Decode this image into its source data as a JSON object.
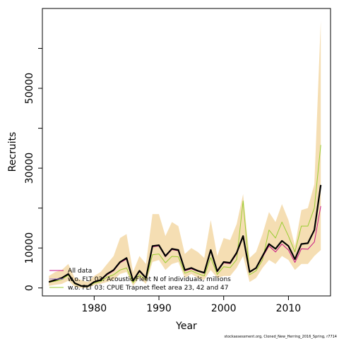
{
  "chart_data": {
    "type": "line",
    "xlabel": "Year",
    "ylabel": "Recruits",
    "xlim": [
      1972,
      2016.5
    ],
    "ylim": [
      -2000,
      70000
    ],
    "x_ticks": [
      1980,
      1990,
      2000,
      2010
    ],
    "x_tick_labels": [
      "1980",
      "1990",
      "2000",
      "2010"
    ],
    "y_ticks": [
      0,
      10000,
      20000,
      30000,
      40000,
      50000,
      60000
    ],
    "y_tick_labels": [
      "0",
      "10000",
      "",
      "30000",
      "",
      "50000",
      ""
    ],
    "x": [
      1973,
      1974,
      1975,
      1976,
      1977,
      1978,
      1979,
      1980,
      1981,
      1982,
      1983,
      1984,
      1985,
      1986,
      1987,
      1988,
      1989,
      1990,
      1991,
      1992,
      1993,
      1994,
      1995,
      1996,
      1997,
      1998,
      1999,
      2000,
      2001,
      2002,
      2003,
      2004,
      2005,
      2006,
      2007,
      2008,
      2009,
      2010,
      2011,
      2012,
      2013,
      2014,
      2015
    ],
    "band": {
      "name": "",
      "color": "#f5deb3",
      "lower": [
        500,
        800,
        1000,
        1800,
        300,
        0,
        0,
        700,
        1000,
        1500,
        2000,
        3500,
        4000,
        500,
        2500,
        1000,
        6500,
        7000,
        4500,
        6000,
        6500,
        2500,
        3500,
        2500,
        2000,
        4500,
        2500,
        3000,
        3000,
        5000,
        8000,
        1500,
        2500,
        5000,
        7000,
        6000,
        8000,
        7000,
        4500,
        6000,
        6000,
        8000,
        9500
      ],
      "upper": [
        3000,
        4000,
        4500,
        6000,
        2500,
        2000,
        1500,
        3000,
        4000,
        6000,
        8000,
        12500,
        13500,
        4000,
        8000,
        6000,
        18500,
        18500,
        13000,
        16500,
        15500,
        8500,
        10000,
        9000,
        7500,
        17000,
        8000,
        12500,
        12000,
        16000,
        23500,
        7500,
        9000,
        13500,
        19000,
        16500,
        21000,
        17000,
        10500,
        19500,
        20000,
        26000,
        67000
      ]
    },
    "series": [
      {
        "name": "All data",
        "color": "#000000",
        "values": [
          1500,
          2000,
          2500,
          3500,
          1200,
          500,
          400,
          1500,
          2000,
          3500,
          4500,
          6500,
          7500,
          1800,
          4300,
          2500,
          10500,
          10700,
          8000,
          9800,
          9500,
          4500,
          5000,
          4300,
          3800,
          9500,
          4200,
          6500,
          6300,
          8800,
          13000,
          4000,
          5000,
          8000,
          11000,
          9800,
          11800,
          10500,
          7200,
          11000,
          11200,
          14500,
          25800
        ]
      },
      {
        "name": "w.o. FLT 03: Acoustic Fleet   N of individuals, millions",
        "color": "#c71585",
        "values": [
          1500,
          2000,
          2500,
          3400,
          1100,
          450,
          400,
          1400,
          1900,
          3300,
          4300,
          6300,
          7200,
          1700,
          4100,
          2400,
          10300,
          10500,
          7800,
          9600,
          9300,
          4300,
          4800,
          4200,
          3700,
          9300,
          4000,
          6300,
          6100,
          8500,
          12800,
          3900,
          4900,
          7700,
          10500,
          9000,
          11000,
          9500,
          6400,
          9800,
          9700,
          11500,
          20500
        ]
      },
      {
        "name": "w.o. FLT 03: CPUE Trapnet fleet area 23, 42 and 47",
        "color": "#9acd32",
        "values": [
          1400,
          1700,
          2100,
          3200,
          1000,
          400,
          300,
          1200,
          1600,
          2700,
          3300,
          4500,
          5000,
          1300,
          3300,
          2000,
          8300,
          8500,
          6300,
          7900,
          7800,
          3700,
          4300,
          3600,
          3000,
          7600,
          3400,
          5300,
          5100,
          7100,
          21800,
          3300,
          4300,
          7000,
          14500,
          12500,
          16500,
          13000,
          9000,
          15500,
          15500,
          20000,
          35800
        ]
      }
    ]
  },
  "legend": {
    "placement": "bottom-left",
    "items": [
      {
        "label": "All data",
        "color": "#c71585"
      },
      {
        "label": "w.o. FLT 03: Acoustic Fleet   N of individuals, millions",
        "color": "#9370db"
      },
      {
        "label": "w.o. FLT 03: CPUE Trapnet fleet area 23, 42 and 47",
        "color": "#9acd32"
      }
    ]
  },
  "footer": {
    "text": "stockassessment.org, Cloned_New_Herring_2016_Spring, r7714"
  }
}
